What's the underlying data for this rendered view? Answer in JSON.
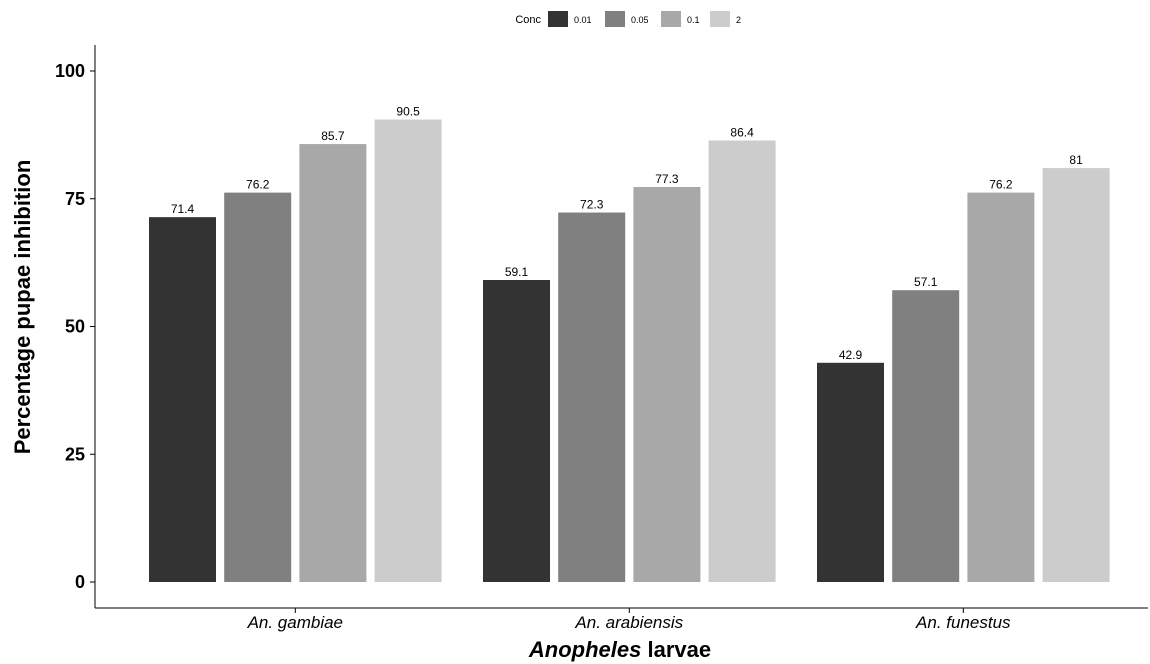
{
  "chart_data": {
    "type": "bar",
    "categories": [
      "An. gambiae",
      "An. arabiensis",
      "An. funestus"
    ],
    "series": [
      {
        "name": "0.01",
        "color": "#333333",
        "values": [
          71.4,
          59.1,
          42.9
        ]
      },
      {
        "name": "0.05",
        "color": "#808080",
        "values": [
          76.2,
          72.3,
          57.1
        ]
      },
      {
        "name": "0.1",
        "color": "#a8a8a8",
        "values": [
          85.7,
          77.3,
          76.2
        ]
      },
      {
        "name": "2",
        "color": "#cccccc",
        "values": [
          90.5,
          86.4,
          81
        ]
      }
    ],
    "data_labels": [
      [
        "71.4",
        "59.1",
        "42.9"
      ],
      [
        "76.2",
        "72.3",
        "57.1"
      ],
      [
        "85.7",
        "77.3",
        "76.2"
      ],
      [
        "90.5",
        "86.4",
        "81"
      ]
    ],
    "yticks": [
      0,
      25,
      50,
      75,
      100
    ],
    "ytick_labels": [
      "0",
      "25",
      "50",
      "75",
      "100"
    ],
    "ylim": [
      0,
      105
    ],
    "ylabel": "Percentage pupae inhibition",
    "xlabel_italic": "Anopheles",
    "xlabel_rest": " larvae",
    "legend_title": "Conc",
    "legend_position": "top",
    "grid": false
  }
}
